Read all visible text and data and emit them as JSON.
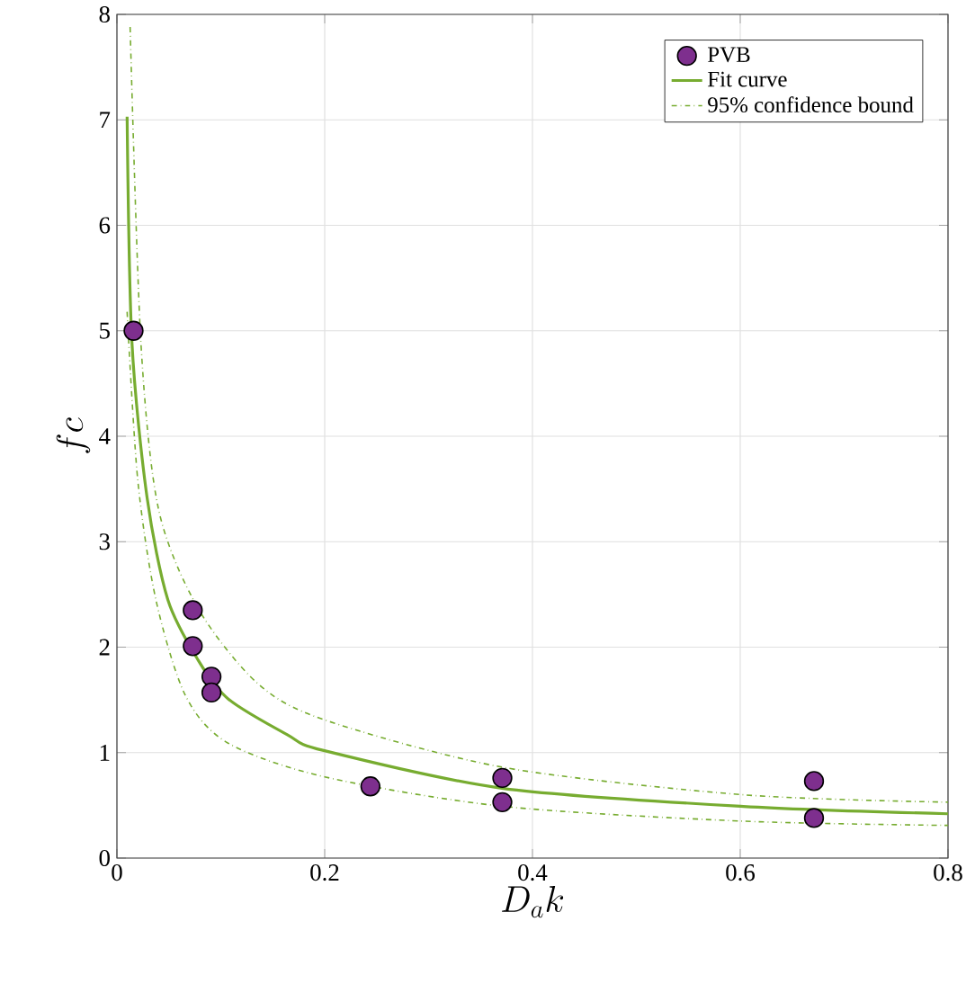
{
  "chart_data": {
    "type": "scatter",
    "xlabel": "D_a k",
    "ylabel": "fc",
    "xlim": [
      0,
      0.8
    ],
    "ylim": [
      0,
      8
    ],
    "xticks": [
      0,
      0.2,
      0.4,
      0.6,
      0.8
    ],
    "yticks": [
      0,
      1,
      2,
      3,
      4,
      5,
      6,
      7,
      8
    ],
    "grid": true,
    "legend": "top right",
    "series": [
      {
        "name": "PVB",
        "color": "#7e2f8e",
        "x": [
          0.016,
          0.073,
          0.073,
          0.091,
          0.091,
          0.244,
          0.371,
          0.371,
          0.671,
          0.671
        ],
        "values": [
          5.0,
          2.35,
          2.01,
          1.72,
          1.57,
          0.68,
          0.76,
          0.53,
          0.73,
          0.38
        ]
      },
      {
        "name": "Fit curve",
        "type": "line",
        "marker": "none",
        "line_style": "solid",
        "color": "#77ac30",
        "x": [
          0.0098,
          0.0144,
          0.029,
          0.049,
          0.078,
          0.107,
          0.164,
          0.199,
          0.372,
          0.603,
          0.8
        ],
        "values": [
          7.03,
          4.9,
          3.42,
          2.45,
          1.88,
          1.51,
          1.17,
          1.02,
          0.66,
          0.49,
          0.42
        ]
      },
      {
        "name": "95% confidence bound",
        "type": "line",
        "marker": "none",
        "line_style": "dashdot",
        "color": "#77ac30",
        "x": [
          0.0127,
          0.023,
          0.04,
          0.078,
          0.135,
          0.2,
          0.372,
          0.603,
          0.8
        ],
        "values": [
          7.88,
          4.9,
          3.31,
          2.37,
          1.66,
          1.31,
          0.86,
          0.6,
          0.53
        ]
      },
      {
        "type": "line",
        "marker": "none",
        "line_style": "dashdot",
        "color": "#77ac30",
        "x": [
          0.0098,
          0.02,
          0.0375,
          0.066,
          0.107,
          0.2,
          0.372,
          0.603,
          0.8
        ],
        "values": [
          5.18,
          3.59,
          2.45,
          1.54,
          1.09,
          0.77,
          0.49,
          0.35,
          0.31
        ]
      }
    ]
  }
}
